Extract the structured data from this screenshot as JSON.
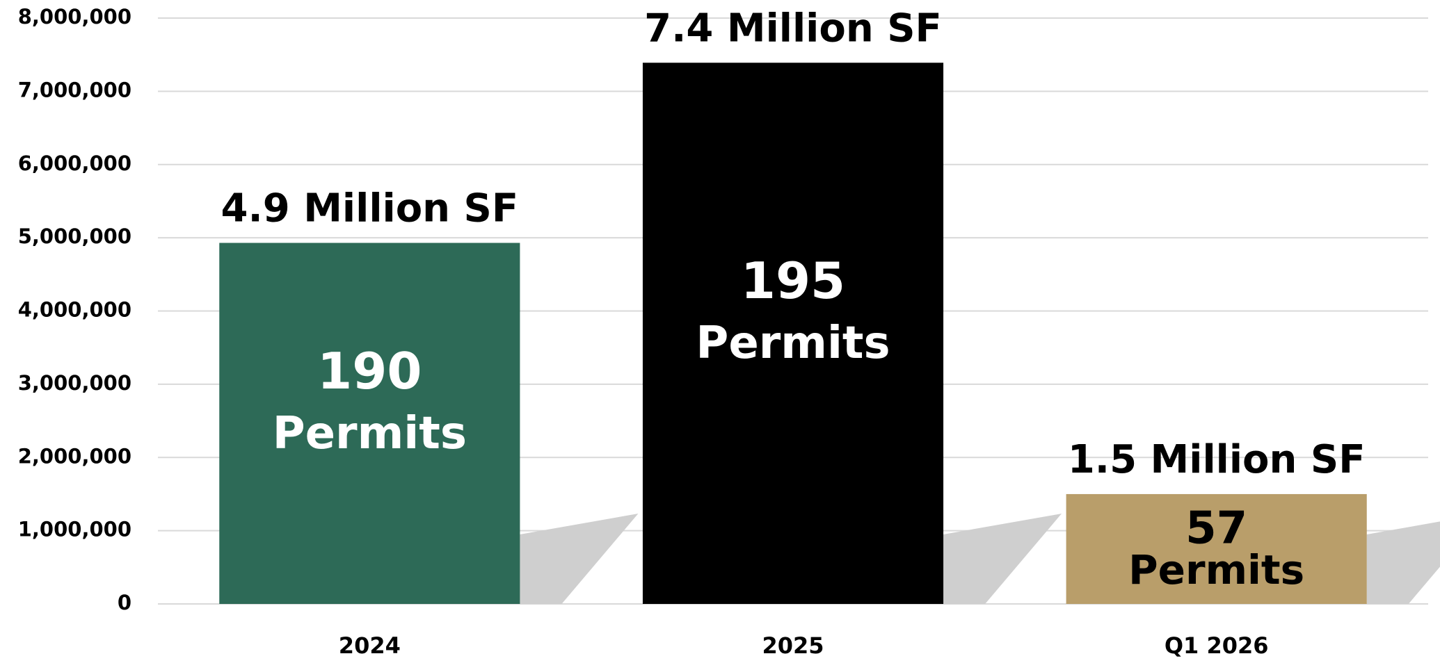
{
  "chart_data": {
    "type": "bar",
    "categories": [
      "2024",
      "2025",
      "Q1 2026"
    ],
    "values": [
      4930000,
      7390000,
      1500000
    ],
    "value_labels": [
      "4.9 Million SF",
      "7.4 Million SF",
      "1.5 Million SF"
    ],
    "colors": [
      "#2d6a57",
      "#000000",
      "#b99e6a"
    ],
    "permit_counts": [
      190,
      195,
      57
    ],
    "permit_unit": "Permits",
    "permit_label_colors": [
      "#ffffff",
      "#ffffff",
      "#000000"
    ],
    "ylim": [
      0,
      8000000
    ],
    "yticks": [
      0,
      {
        "value": 1000000,
        "label": "1,000,000"
      },
      {
        "value": 2000000,
        "label": "2,000,000"
      },
      {
        "value": 3000000,
        "label": "3,000,000"
      },
      {
        "value": 4000000,
        "label": "4,000,000"
      },
      {
        "value": 5000000,
        "label": "5,000,000"
      },
      {
        "value": 6000000,
        "label": "6,000,000"
      },
      {
        "value": 7000000,
        "label": "7,000,000"
      },
      {
        "value": 8000000,
        "label": "8,000,000"
      }
    ],
    "grid": true
  }
}
